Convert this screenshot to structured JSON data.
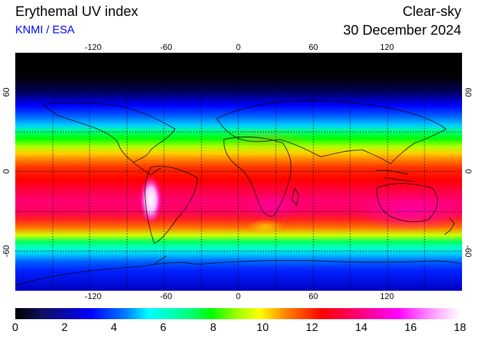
{
  "header": {
    "title": "Erythemal UV index",
    "source": "KNMI / ESA",
    "condition": "Clear-sky",
    "date": "30 December 2024"
  },
  "map": {
    "projection": "equirectangular",
    "lon_range": [
      -180,
      180
    ],
    "lat_range": [
      -90,
      90
    ],
    "grid_lines": true,
    "lon_ticks": [
      "-120",
      "-60",
      "0",
      "60",
      "120"
    ],
    "lat_ticks": [
      "60",
      "0",
      "-60"
    ],
    "bands": [
      {
        "lat": 90,
        "color": "#000000"
      },
      {
        "lat": 73,
        "color": "#000000"
      },
      {
        "lat": 65,
        "color": "#000030"
      },
      {
        "lat": 58,
        "color": "#000080"
      },
      {
        "lat": 50,
        "color": "#0000ff"
      },
      {
        "lat": 42,
        "color": "#0060ff"
      },
      {
        "lat": 35,
        "color": "#00d0ff"
      },
      {
        "lat": 31,
        "color": "#00ff90"
      },
      {
        "lat": 25,
        "color": "#00ff00"
      },
      {
        "lat": 19,
        "color": "#b0ff00"
      },
      {
        "lat": 14,
        "color": "#ffd000"
      },
      {
        "lat": 9,
        "color": "#ff8000"
      },
      {
        "lat": 3,
        "color": "#ff3000"
      },
      {
        "lat": -6,
        "color": "#ff0000"
      },
      {
        "lat": -14,
        "color": "#ff0040"
      },
      {
        "lat": -22,
        "color": "#ff0070"
      },
      {
        "lat": -30,
        "color": "#ff0060"
      },
      {
        "lat": -36,
        "color": "#ff2020"
      },
      {
        "lat": -42,
        "color": "#ff7000"
      },
      {
        "lat": -48,
        "color": "#d0ff00"
      },
      {
        "lat": -53,
        "color": "#00ff60"
      },
      {
        "lat": -58,
        "color": "#00ffd0"
      },
      {
        "lat": -63,
        "color": "#00c0ff"
      },
      {
        "lat": -68,
        "color": "#0060ff"
      },
      {
        "lat": -75,
        "color": "#0020ff"
      },
      {
        "lat": -90,
        "color": "#0000c0"
      }
    ]
  },
  "colorbar": {
    "labels": [
      "0",
      "2",
      "4",
      "6",
      "8",
      "10",
      "12",
      "14",
      "16",
      "18"
    ],
    "min": 0,
    "max": 18
  }
}
